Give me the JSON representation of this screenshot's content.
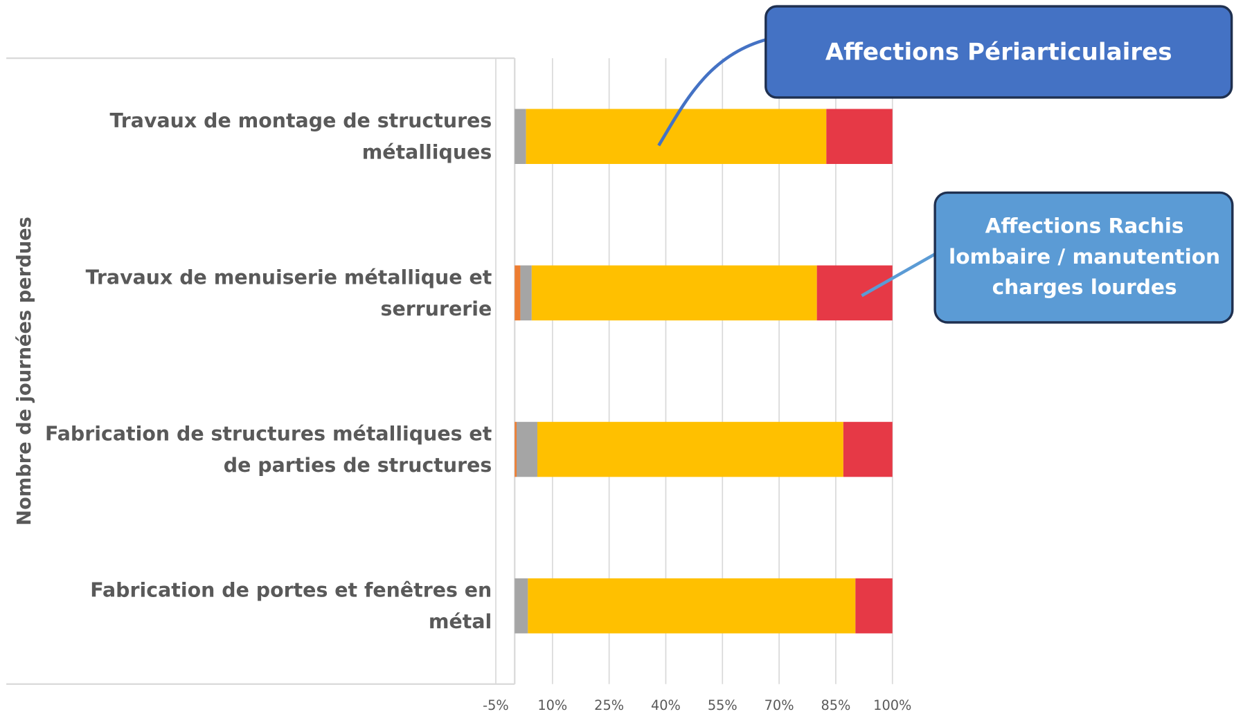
{
  "chart_data": {
    "type": "stacked-bar-horizontal",
    "y_label": "Nombre de journées perdues",
    "categories": [
      "Travaux de montage de structures métalliques",
      "Travaux de menuiserie métallique et serrurerie",
      "Fabrication de structures métalliques et de parties de structures",
      "Fabrication de portes et fenêtres en métal"
    ],
    "series": [
      {
        "color": "#ed7d31",
        "values": [
          0,
          1.5,
          0.5,
          0
        ]
      },
      {
        "color": "#a5a5a5",
        "values": [
          3,
          3,
          5.5,
          3.5
        ]
      },
      {
        "color": "#ffc000",
        "values": [
          79.5,
          75.5,
          81,
          86.7
        ]
      },
      {
        "color": "#e63946",
        "values": [
          17.5,
          20,
          13,
          9.8
        ]
      }
    ],
    "xlim": [
      -5,
      100
    ],
    "xticks": [
      {
        "value": -5,
        "label": "-5%"
      },
      {
        "value": 10,
        "label": "10%"
      },
      {
        "value": 25,
        "label": "25%"
      },
      {
        "value": 40,
        "label": "40%"
      },
      {
        "value": 55,
        "label": "55%"
      },
      {
        "value": 70,
        "label": "70%"
      },
      {
        "value": 85,
        "label": "85%"
      },
      {
        "value": 100,
        "label": "100%"
      }
    ],
    "grid": true,
    "annotations": [
      "Affections Périarticulaires",
      "Affections Rachis lombaire / manutention charges lourdes"
    ]
  }
}
